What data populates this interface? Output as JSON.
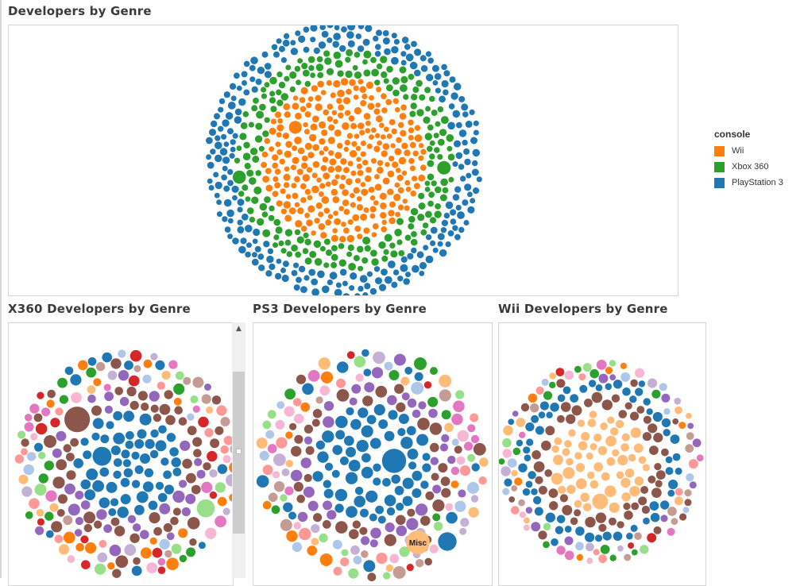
{
  "dashboard": {
    "main_title": "Developers by Genre",
    "x360_title": "X360 Developers by Genre",
    "ps3_title": "PS3 Developers by Genre",
    "wii_title": "Wii Developers by Genre"
  },
  "legend": {
    "title": "console",
    "items": [
      {
        "label": "Wii",
        "color": "#ff7f0e"
      },
      {
        "label": "Xbox 360",
        "color": "#2ca02c"
      },
      {
        "label": "PlayStation 3",
        "color": "#1f77b4"
      }
    ]
  },
  "chart_data": [
    {
      "type": "packed-bubble",
      "title": "Developers by Genre",
      "color_by": "console",
      "layers": [
        "Wii",
        "Xbox 360",
        "PlayStation 3"
      ],
      "series": [
        {
          "name": "Wii",
          "color": "#ff7f0e"
        },
        {
          "name": "Xbox 360",
          "color": "#2ca02c"
        },
        {
          "name": "PlayStation 3",
          "color": "#1f77b4"
        }
      ],
      "legend_position": "right"
    },
    {
      "type": "packed-bubble",
      "title": "X360 Developers by Genre",
      "color_by": "genre",
      "layers": [
        "#1f77b4",
        "#8c564b",
        "#9467bd",
        "#ffbb78",
        "mixed"
      ]
    },
    {
      "type": "packed-bubble",
      "title": "PS3 Developers by Genre",
      "color_by": "genre",
      "layers": [
        "#1f77b4",
        "#8c564b",
        "#9467bd",
        "#ffbb78",
        "mixed"
      ],
      "annotations": [
        "Misc"
      ]
    },
    {
      "type": "packed-bubble",
      "title": "Wii Developers by Genre",
      "color_by": "genre",
      "layers": [
        "#ffbb78",
        "#8c564b",
        "#1f77b4",
        "mixed"
      ]
    }
  ],
  "palette": {
    "mixed": [
      "#aec7e8",
      "#ff9896",
      "#ffbb78",
      "#d62728",
      "#2ca02c",
      "#98df8a",
      "#c5b0d5",
      "#9467bd",
      "#8c564b",
      "#c49c94",
      "#e377c2",
      "#f7b6d2",
      "#ff7f0e",
      "#1f77b4"
    ],
    "annotation_fill": "#ffbb78"
  }
}
